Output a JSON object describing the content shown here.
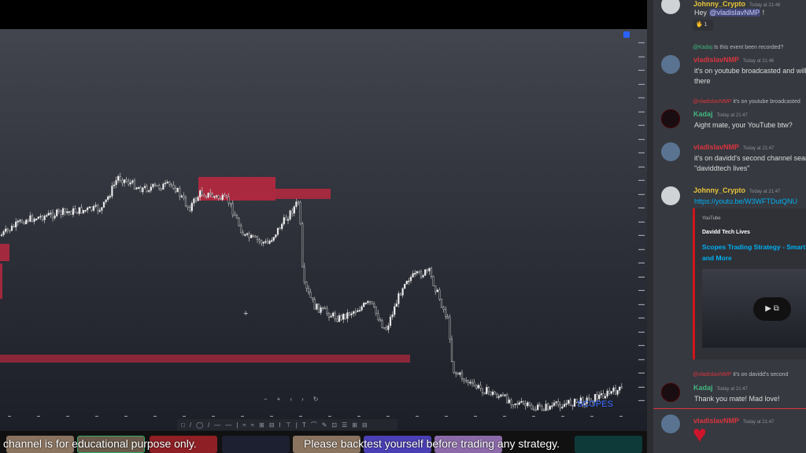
{
  "chart": {
    "watermark": "SCOPES",
    "nav_controls": [
      "−",
      "+",
      "‹",
      "›",
      "↻"
    ],
    "tool_icons": [
      "□",
      "/",
      "◯",
      "/",
      "—",
      "—",
      "|",
      "≈",
      "≈",
      "⊞",
      "⊟",
      "I",
      "⊤",
      "|",
      "T",
      "⌒",
      "✎",
      "⊡",
      "☰",
      "⊞",
      "⊟"
    ],
    "colors": {
      "zone": "#b8283f",
      "up": "#e8e8ea",
      "accent": "#2962ff"
    }
  },
  "caption": {
    "left": "channel is for educational purpose only.",
    "right": "Please backtest yourself before trading any strategy."
  },
  "discord": {
    "messages": [
      {
        "user": "Johnny_Crypto",
        "time": "Today at 21:46",
        "text": "Hey ",
        "mention": "@vladislavNMP",
        "after": " !",
        "reaction_count": "1"
      },
      {
        "reply_to": "@Kadaj",
        "reply_text": "Is this event been recorded?",
        "user": "vladislavNMP",
        "time": "Today at 21:46",
        "text": "it's on youtube broadcasted and will",
        "text2": "there"
      },
      {
        "reply_to": "@vladislavNMP",
        "reply_text": "it's on youtube broadcasted",
        "user": "Kadaj",
        "time": "Today at 21:47",
        "text": "Aight mate, your YouTube btw?"
      },
      {
        "user": "vladislavNMP",
        "time": "Today at 21:47",
        "text": "it's on davidd's second channel search",
        "text2": "\"daviddtech lives\""
      },
      {
        "user": "Johnny_Crypto",
        "time": "Today at 21:47",
        "text": "https://youtu.be/W3WFTDutQNU"
      },
      {
        "reply_to": "@vladislavNMP",
        "reply_text": "it's on davidd's second",
        "user": "Kadaj",
        "time": "Today at 21:47",
        "text": "Thank you mate! Mad love!"
      },
      {
        "user": "vladislavNMP",
        "time": "Today at 21:47"
      }
    ],
    "embed": {
      "provider": "YouTube",
      "author": "Davidd Tech Lives",
      "title": "Scopes Trading Strategy - Smart",
      "title2": "and More"
    },
    "colors": {
      "johnny": "#e8c43a",
      "vlad": "#d9343f",
      "kadaj": "#43b581",
      "link": "#00aff4",
      "mention_bg": "#414675"
    }
  }
}
